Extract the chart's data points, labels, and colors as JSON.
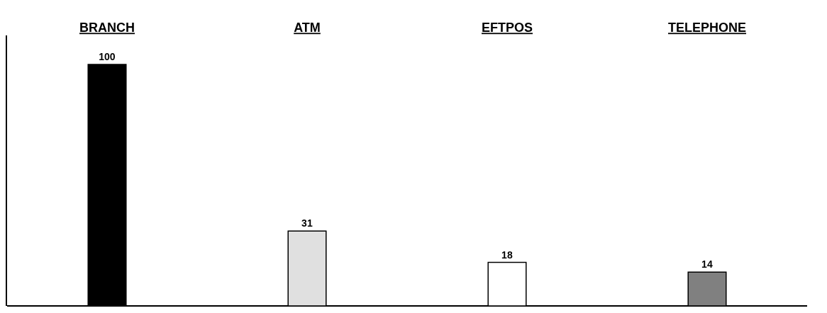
{
  "chart_data": {
    "type": "bar",
    "categories": [
      "BRANCH",
      "ATM",
      "EFTPOS",
      "TELEPHONE"
    ],
    "values": [
      100,
      31,
      18,
      14
    ],
    "colors": [
      "#000000",
      "#e0e0e0",
      "#ffffff",
      "#808080"
    ],
    "data_labels": true
  }
}
